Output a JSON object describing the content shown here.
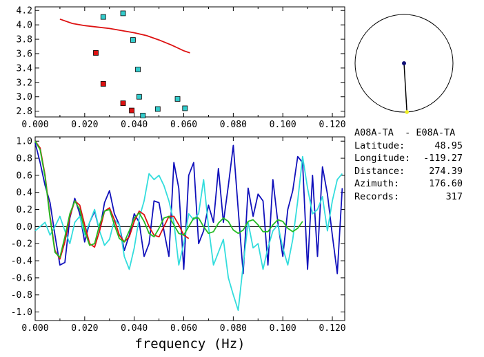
{
  "chart_data": [
    {
      "type": "scatter",
      "title": "",
      "xlabel": "",
      "ylabel": "",
      "xlim": [
        0.0,
        0.125
      ],
      "ylim": [
        2.72,
        4.25
      ],
      "xticks": [
        "0.000",
        "0.020",
        "0.040",
        "0.060",
        "0.080",
        "0.100",
        "0.120"
      ],
      "xtick_values": [
        0.0,
        0.02,
        0.04,
        0.06,
        0.08,
        0.1,
        0.12
      ],
      "yticks": [
        "2.8",
        "3.0",
        "3.2",
        "3.4",
        "3.6",
        "3.8",
        "4.0",
        "4.2"
      ],
      "ytick_values": [
        2.8,
        3.0,
        3.2,
        3.4,
        3.6,
        3.8,
        4.0,
        4.2
      ],
      "series": [
        {
          "name": "cyan-picks",
          "color": "#33cccc",
          "points": [
            [
              0.0275,
              4.11
            ],
            [
              0.0355,
              4.16
            ],
            [
              0.0395,
              3.79
            ],
            [
              0.0415,
              3.38
            ],
            [
              0.042,
              3.0
            ],
            [
              0.0435,
              2.74
            ],
            [
              0.0495,
              2.83
            ],
            [
              0.0575,
              2.97
            ],
            [
              0.0605,
              2.84
            ]
          ]
        },
        {
          "name": "red-picks",
          "color": "#dd1111",
          "points": [
            [
              0.0245,
              3.61
            ],
            [
              0.0275,
              3.18
            ],
            [
              0.0355,
              2.91
            ],
            [
              0.039,
              2.81
            ]
          ]
        },
        {
          "name": "red-model-curve",
          "color": "#dd1111",
          "x": [
            0.01,
            0.015,
            0.02,
            0.025,
            0.03,
            0.035,
            0.04,
            0.045,
            0.05,
            0.055,
            0.06,
            0.0625
          ],
          "y": [
            4.08,
            4.02,
            3.99,
            3.97,
            3.95,
            3.92,
            3.89,
            3.85,
            3.79,
            3.72,
            3.64,
            3.61
          ]
        }
      ]
    },
    {
      "type": "line",
      "title": "",
      "xlabel": "frequency (Hz)",
      "ylabel": "",
      "xlim": [
        0.0,
        0.125
      ],
      "ylim": [
        -1.1,
        1.05
      ],
      "xticks": [
        "0.000",
        "0.020",
        "0.040",
        "0.060",
        "0.080",
        "0.100",
        "0.120"
      ],
      "xtick_values": [
        0.0,
        0.02,
        0.04,
        0.06,
        0.08,
        0.1,
        0.12
      ],
      "yticks": [
        "1.0",
        "0.8",
        "0.6",
        "0.4",
        "0.2",
        "0.0",
        "-0.2",
        "-0.4",
        "-0.6",
        "-0.8",
        "-1.0"
      ],
      "ytick_values": [
        1.0,
        0.8,
        0.6,
        0.4,
        0.2,
        0.0,
        -0.2,
        -0.4,
        -0.6,
        -0.8,
        -1.0
      ],
      "series": [
        {
          "name": "blue",
          "color": "#1111bb",
          "x": [
            0.0,
            0.002,
            0.004,
            0.006,
            0.008,
            0.01,
            0.012,
            0.014,
            0.016,
            0.018,
            0.02,
            0.022,
            0.024,
            0.026,
            0.028,
            0.03,
            0.032,
            0.034,
            0.036,
            0.038,
            0.04,
            0.042,
            0.044,
            0.046,
            0.048,
            0.05,
            0.052,
            0.054,
            0.056,
            0.058,
            0.06,
            0.062,
            0.064,
            0.066,
            0.068,
            0.07,
            0.072,
            0.074,
            0.076,
            0.078,
            0.08,
            0.082,
            0.084,
            0.086,
            0.088,
            0.09,
            0.092,
            0.094,
            0.096,
            0.098,
            0.1,
            0.102,
            0.104,
            0.106,
            0.108,
            0.11,
            0.112,
            0.114,
            0.116,
            0.118,
            0.12,
            0.122,
            0.124
          ],
          "y": [
            0.98,
            0.75,
            0.48,
            0.28,
            -0.1,
            -0.45,
            -0.42,
            0.1,
            0.33,
            0.15,
            -0.18,
            0.05,
            0.18,
            -0.05,
            0.28,
            0.42,
            0.15,
            0.02,
            -0.28,
            -0.1,
            0.15,
            0.05,
            -0.35,
            -0.2,
            0.3,
            0.28,
            -0.05,
            -0.35,
            0.75,
            0.45,
            -0.5,
            0.6,
            0.75,
            -0.2,
            -0.05,
            0.25,
            0.05,
            0.68,
            0.05,
            0.48,
            0.95,
            0.2,
            -0.55,
            0.45,
            0.12,
            0.38,
            0.3,
            -0.45,
            0.55,
            0.05,
            -0.35,
            0.2,
            0.42,
            0.82,
            0.75,
            -0.5,
            0.6,
            -0.35,
            0.7,
            0.38,
            -0.1,
            -0.55,
            0.45
          ]
        },
        {
          "name": "cyan",
          "color": "#33dddd",
          "x": [
            0.0,
            0.002,
            0.004,
            0.006,
            0.008,
            0.01,
            0.012,
            0.014,
            0.016,
            0.018,
            0.02,
            0.022,
            0.024,
            0.026,
            0.028,
            0.03,
            0.032,
            0.034,
            0.036,
            0.038,
            0.04,
            0.042,
            0.044,
            0.046,
            0.048,
            0.05,
            0.052,
            0.054,
            0.056,
            0.058,
            0.06,
            0.062,
            0.064,
            0.066,
            0.068,
            0.07,
            0.072,
            0.074,
            0.076,
            0.078,
            0.08,
            0.082,
            0.084,
            0.086,
            0.088,
            0.09,
            0.092,
            0.094,
            0.096,
            0.098,
            0.1,
            0.102,
            0.104,
            0.106,
            0.108,
            0.11,
            0.112,
            0.114,
            0.116,
            0.118,
            0.12,
            0.122,
            0.124
          ],
          "y": [
            -0.05,
            0.0,
            0.05,
            -0.1,
            0.0,
            0.12,
            -0.05,
            -0.2,
            0.05,
            0.12,
            -0.1,
            0.05,
            0.2,
            -0.05,
            -0.22,
            -0.15,
            0.08,
            0.02,
            -0.35,
            -0.5,
            -0.25,
            0.1,
            0.3,
            0.62,
            0.55,
            0.6,
            0.48,
            0.3,
            0.05,
            -0.45,
            -0.2,
            0.15,
            0.08,
            0.15,
            0.55,
            0.0,
            -0.45,
            -0.3,
            -0.15,
            -0.6,
            -0.8,
            -0.98,
            -0.45,
            0.05,
            -0.25,
            -0.2,
            -0.5,
            -0.25,
            -0.05,
            0.02,
            -0.25,
            -0.45,
            -0.15,
            0.3,
            0.82,
            0.45,
            0.15,
            0.2,
            0.35,
            -0.05,
            0.3,
            0.55,
            0.62
          ]
        },
        {
          "name": "red",
          "color": "#dd1111",
          "x": [
            0.0,
            0.002,
            0.004,
            0.006,
            0.008,
            0.01,
            0.012,
            0.014,
            0.016,
            0.018,
            0.02,
            0.022,
            0.024,
            0.026,
            0.028,
            0.03,
            0.032,
            0.034,
            0.036,
            0.038,
            0.04,
            0.042,
            0.044,
            0.046,
            0.048,
            0.05,
            0.052,
            0.054,
            0.056,
            0.058,
            0.06,
            0.062
          ],
          "y": [
            1.0,
            0.92,
            0.6,
            0.12,
            -0.28,
            -0.38,
            -0.18,
            0.12,
            0.3,
            0.25,
            0.02,
            -0.2,
            -0.24,
            -0.05,
            0.18,
            0.22,
            0.08,
            -0.1,
            -0.18,
            -0.12,
            0.06,
            0.18,
            0.14,
            0.0,
            -0.1,
            -0.12,
            0.0,
            0.12,
            0.12,
            0.02,
            -0.1,
            -0.14
          ]
        },
        {
          "name": "green",
          "color": "#22bb22",
          "x": [
            0.0,
            0.002,
            0.004,
            0.006,
            0.008,
            0.01,
            0.012,
            0.014,
            0.016,
            0.018,
            0.02,
            0.022,
            0.024,
            0.026,
            0.028,
            0.03,
            0.032,
            0.034,
            0.036,
            0.038,
            0.04,
            0.042,
            0.044,
            0.046,
            0.048,
            0.05,
            0.052,
            0.054,
            0.056,
            0.058,
            0.06,
            0.062,
            0.064,
            0.066,
            0.068,
            0.07,
            0.072,
            0.074,
            0.076,
            0.078,
            0.08,
            0.082,
            0.084,
            0.086,
            0.088,
            0.09,
            0.092,
            0.094,
            0.096,
            0.098,
            0.1,
            0.102,
            0.104,
            0.106,
            0.108
          ],
          "y": [
            1.0,
            0.9,
            0.58,
            0.1,
            -0.3,
            -0.36,
            -0.12,
            0.15,
            0.3,
            0.2,
            -0.05,
            -0.22,
            -0.2,
            0.02,
            0.18,
            0.2,
            0.02,
            -0.14,
            -0.18,
            -0.05,
            0.1,
            0.16,
            0.06,
            -0.08,
            -0.12,
            -0.02,
            0.1,
            0.12,
            0.02,
            -0.08,
            -0.1,
            0.0,
            0.1,
            0.1,
            0.0,
            -0.08,
            -0.06,
            0.04,
            0.1,
            0.06,
            -0.04,
            -0.08,
            -0.04,
            0.06,
            0.08,
            0.02,
            -0.06,
            -0.06,
            0.02,
            0.08,
            0.06,
            -0.02,
            -0.06,
            -0.02,
            0.06
          ]
        }
      ]
    }
  ],
  "station": {
    "pair": "A08A-TA  - E08A-TA",
    "rows": [
      {
        "label": "Latitude:",
        "value": "48.95"
      },
      {
        "label": "Longitude:",
        "value": "-119.27"
      },
      {
        "label": "Distance:",
        "value": "274.39"
      },
      {
        "label": "Azimuth:",
        "value": "176.60"
      },
      {
        "label": "Records:",
        "value": "317"
      }
    ],
    "azimuth_deg": 176.6,
    "line_color": "#000000",
    "center_dot_color": "#111177",
    "end_dot_color": "#eeee22"
  }
}
